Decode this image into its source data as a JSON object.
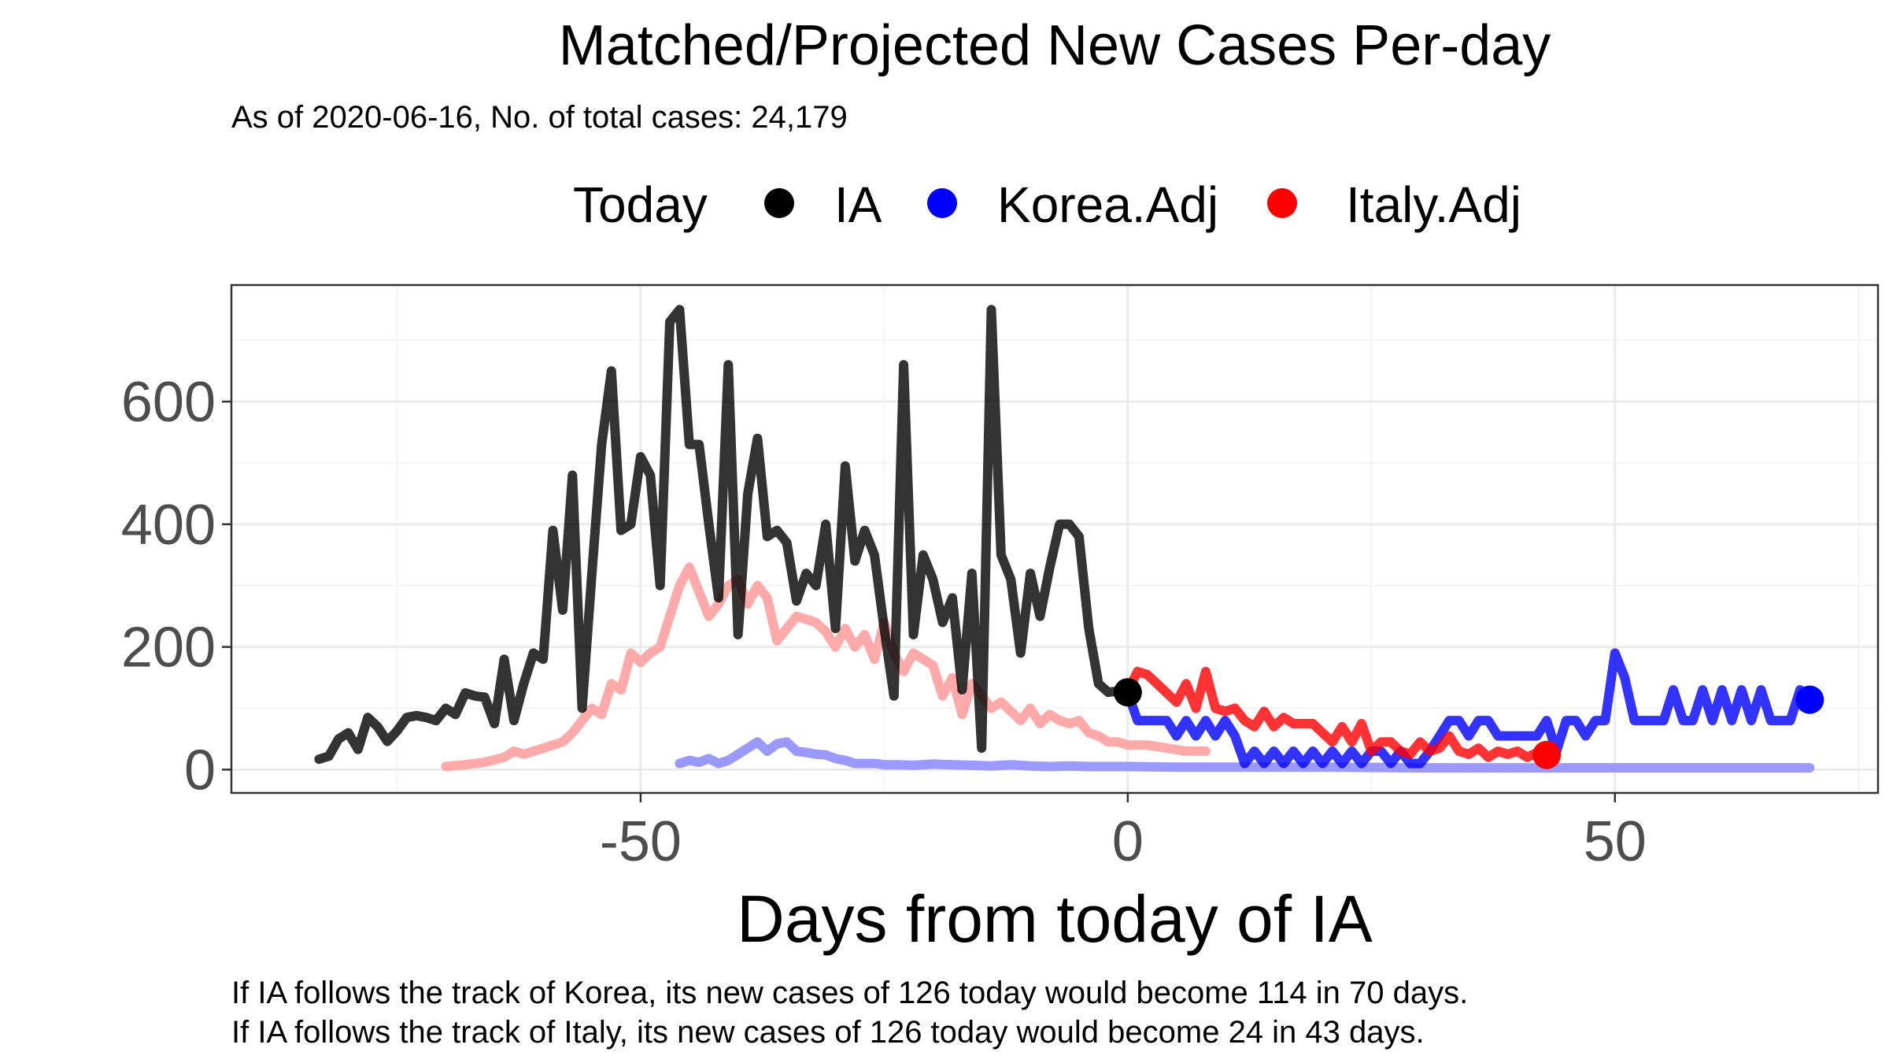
{
  "chart_data": {
    "type": "line",
    "title": "Matched/Projected New Cases Per-day",
    "subtitle": "As of 2020-06-16, No. of total cases: 24,179",
    "xlabel": "Days from today of IA",
    "ylabel": "",
    "xlim": [
      -92,
      77
    ],
    "ylim": [
      -38,
      790
    ],
    "x_ticks": [
      -50,
      0,
      50
    ],
    "y_ticks": [
      0,
      200,
      400,
      600
    ],
    "grid": true,
    "legend": {
      "position": "top",
      "title": "Today",
      "entries": [
        {
          "name": "IA",
          "color": "#000000"
        },
        {
          "name": "Korea.Adj",
          "color": "#0000ff"
        },
        {
          "name": "Italy.Adj",
          "color": "#ff0000"
        }
      ]
    },
    "series": [
      {
        "name": "IA",
        "color": "#000000",
        "role": "history",
        "x": [
          -83,
          -82,
          -81,
          -80,
          -79,
          -78,
          -77,
          -76,
          -75,
          -74,
          -73,
          -72,
          -71,
          -70,
          -69,
          -68,
          -67,
          -66,
          -65,
          -64,
          -63,
          -62,
          -61,
          -60,
          -59,
          -58,
          -57,
          -56,
          -55,
          -54,
          -53,
          -52,
          -51,
          -50,
          -49,
          -48,
          -47,
          -46,
          -45,
          -44,
          -43,
          -42,
          -41,
          -40,
          -39,
          -38,
          -37,
          -36,
          -35,
          -34,
          -33,
          -32,
          -31,
          -30,
          -29,
          -28,
          -27,
          -26,
          -25,
          -24,
          -23,
          -22,
          -21,
          -20,
          -19,
          -18,
          -17,
          -16,
          -15,
          -14,
          -13,
          -12,
          -11,
          -10,
          -9,
          -8,
          -7,
          -6,
          -5,
          -4,
          -3,
          -2,
          -1,
          0
        ],
        "y": [
          17,
          22,
          50,
          60,
          33,
          85,
          70,
          46,
          63,
          85,
          88,
          85,
          80,
          100,
          90,
          125,
          120,
          118,
          75,
          180,
          80,
          140,
          190,
          180,
          390,
          260,
          480,
          100,
          320,
          530,
          650,
          390,
          400,
          510,
          480,
          300,
          730,
          750,
          530,
          530,
          400,
          280,
          660,
          220,
          450,
          540,
          380,
          390,
          370,
          275,
          320,
          300,
          400,
          230,
          495,
          340,
          390,
          350,
          230,
          120,
          660,
          220,
          350,
          310,
          240,
          280,
          130,
          320,
          35,
          750,
          350,
          310,
          190,
          320,
          250,
          330,
          400,
          400,
          380,
          230,
          140,
          126,
          128,
          126
        ],
        "show_point": false
      },
      {
        "name": "Korea.Adj (matched)",
        "color": "#9999ff",
        "role": "matched",
        "x": [
          -46,
          -45,
          -44,
          -43,
          -42,
          -41,
          -40,
          -39,
          -38,
          -37,
          -36,
          -35,
          -34,
          -33,
          -32,
          -31,
          -30,
          -29,
          -28,
          -27,
          -26,
          -25,
          -24,
          -22,
          -20,
          -18,
          -16,
          -14,
          -12,
          -10,
          -8,
          -6,
          -4,
          -2,
          0,
          5,
          10,
          20,
          30,
          40,
          50,
          60,
          70
        ],
        "y": [
          10,
          15,
          12,
          18,
          10,
          15,
          25,
          35,
          45,
          30,
          42,
          45,
          30,
          28,
          25,
          24,
          18,
          15,
          10,
          10,
          10,
          8,
          8,
          7,
          9,
          8,
          7,
          6,
          8,
          6,
          5,
          6,
          5,
          5,
          5,
          4,
          4,
          4,
          3,
          3,
          3,
          3,
          3
        ],
        "show_point": false
      },
      {
        "name": "Italy.Adj (matched)",
        "color": "#ffaaaa",
        "role": "matched",
        "x": [
          -70,
          -68,
          -66,
          -64,
          -63,
          -62,
          -60,
          -58,
          -57,
          -56,
          -55,
          -54,
          -53,
          -52,
          -51,
          -50,
          -49,
          -48,
          -47,
          -46,
          -45,
          -44,
          -43,
          -42,
          -41,
          -40,
          -39,
          -38,
          -37,
          -36,
          -35,
          -34,
          -33,
          -32,
          -31,
          -30,
          -29,
          -28,
          -27,
          -26,
          -25,
          -24,
          -23,
          -22,
          -21,
          -20,
          -19,
          -18,
          -17,
          -16,
          -15,
          -14,
          -13,
          -12,
          -11,
          -10,
          -9,
          -8,
          -7,
          -6,
          -5,
          -4,
          -3,
          -2,
          -1,
          0,
          2,
          4,
          6,
          8
        ],
        "y": [
          5,
          8,
          12,
          20,
          30,
          25,
          35,
          45,
          60,
          80,
          100,
          90,
          140,
          130,
          190,
          175,
          190,
          200,
          250,
          300,
          330,
          290,
          250,
          270,
          300,
          310,
          270,
          300,
          280,
          210,
          230,
          250,
          245,
          240,
          225,
          200,
          230,
          200,
          220,
          180,
          240,
          190,
          160,
          190,
          180,
          170,
          120,
          150,
          90,
          140,
          120,
          100,
          110,
          95,
          80,
          100,
          75,
          90,
          80,
          75,
          80,
          60,
          55,
          45,
          45,
          40,
          40,
          35,
          30,
          30
        ],
        "show_point": false
      },
      {
        "name": "Korea.Adj",
        "color": "#0000ff",
        "role": "projection",
        "x": [
          0,
          1,
          2,
          3,
          4,
          5,
          6,
          7,
          8,
          9,
          10,
          11,
          12,
          13,
          14,
          15,
          16,
          17,
          18,
          19,
          20,
          21,
          22,
          23,
          24,
          25,
          26,
          27,
          28,
          29,
          30,
          31,
          32,
          33,
          34,
          35,
          36,
          37,
          38,
          39,
          40,
          41,
          42,
          43,
          44,
          45,
          46,
          47,
          48,
          49,
          50,
          51,
          52,
          53,
          54,
          55,
          56,
          57,
          58,
          59,
          60,
          61,
          62,
          63,
          64,
          65,
          66,
          67,
          68,
          69,
          70
        ],
        "y": [
          126,
          80,
          80,
          80,
          80,
          55,
          80,
          55,
          80,
          55,
          80,
          55,
          10,
          30,
          10,
          30,
          10,
          30,
          10,
          30,
          10,
          30,
          10,
          30,
          10,
          30,
          30,
          10,
          30,
          10,
          10,
          30,
          55,
          80,
          80,
          55,
          80,
          80,
          55,
          55,
          55,
          55,
          55,
          80,
          30,
          80,
          80,
          55,
          80,
          80,
          190,
          150,
          80,
          80,
          80,
          80,
          130,
          80,
          80,
          130,
          80,
          130,
          80,
          130,
          80,
          130,
          80,
          80,
          80,
          130,
          114
        ],
        "show_point": true
      },
      {
        "name": "Italy.Adj",
        "color": "#ff0000",
        "role": "projection",
        "x": [
          0,
          1,
          2,
          3,
          4,
          5,
          6,
          7,
          8,
          9,
          10,
          11,
          12,
          13,
          14,
          15,
          16,
          17,
          18,
          19,
          20,
          21,
          22,
          23,
          24,
          25,
          26,
          27,
          28,
          29,
          30,
          31,
          32,
          33,
          34,
          35,
          36,
          37,
          38,
          39,
          40,
          41,
          42,
          43
        ],
        "y": [
          126,
          160,
          155,
          140,
          125,
          110,
          140,
          100,
          160,
          100,
          95,
          100,
          80,
          70,
          95,
          70,
          85,
          75,
          75,
          75,
          60,
          45,
          70,
          45,
          75,
          30,
          45,
          45,
          30,
          25,
          45,
          30,
          35,
          55,
          30,
          25,
          35,
          20,
          30,
          25,
          30,
          20,
          28,
          24
        ],
        "show_point": true
      }
    ]
  },
  "today_point": {
    "x": 0,
    "y": 126,
    "color": "#000000"
  },
  "captions": [
    "If IA follows the track of Korea, its new cases of 126 today would become 114 in 70 days.",
    "If IA follows the track of Italy, its new cases of 126 today would become 24 in 43 days."
  ]
}
